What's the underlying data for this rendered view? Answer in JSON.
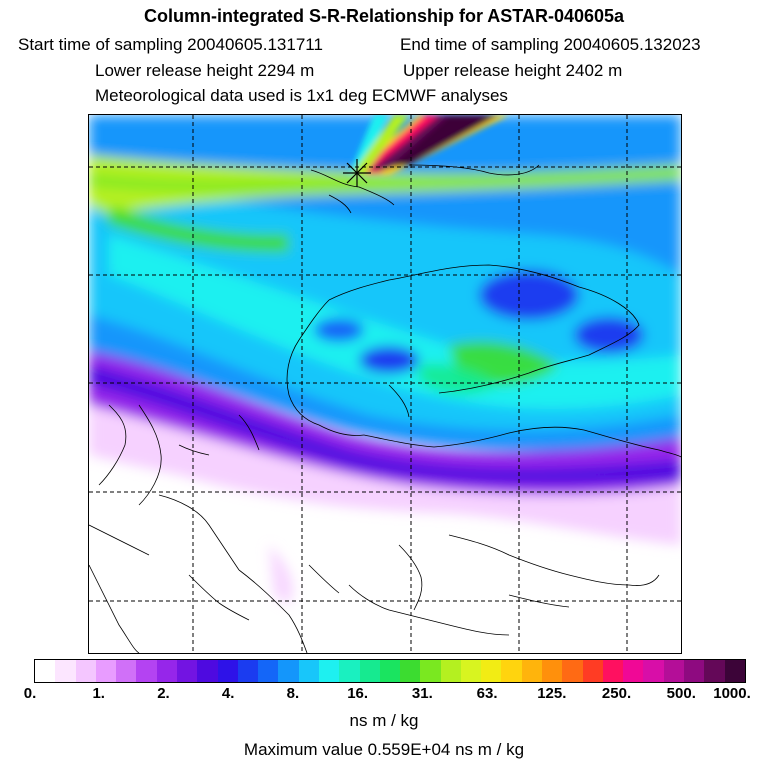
{
  "header": {
    "title": "Column-integrated S-R-Relationship for ASTAR-040605a",
    "start_time": "Start time of sampling 20040605.131711",
    "end_time": "End time of sampling 20040605.132023",
    "lower_height": "Lower release height 2294 m",
    "upper_height": "Upper release height 2402 m",
    "met_data": "Meteorological data used is 1x1 deg ECMWF analyses"
  },
  "colorbar": {
    "tick_labels": [
      "0.",
      "1.",
      "2.",
      "4.",
      "8.",
      "16.",
      "31.",
      "63.",
      "125.",
      "250.",
      "500.",
      "1000."
    ],
    "colors": [
      "#ffffff",
      "#fce6ff",
      "#f4c6ff",
      "#e89cff",
      "#d070f8",
      "#b443f2",
      "#9626ea",
      "#7314e2",
      "#4e0ae0",
      "#2e12e8",
      "#1b3cf0",
      "#1466f8",
      "#1496fb",
      "#18c6fa",
      "#1ef0f0",
      "#1af0c0",
      "#16ea90",
      "#1ae460",
      "#3cdc30",
      "#7ae820",
      "#b4f020",
      "#d8f420",
      "#f2ec14",
      "#ffd40e",
      "#ffb40c",
      "#ff900c",
      "#ff6a14",
      "#ff3c24",
      "#ff1060",
      "#f00896",
      "#d80ea8",
      "#b40e98",
      "#8e0a80",
      "#640858",
      "#3c0438"
    ],
    "units": "ns m / kg",
    "max_value": "Maximum value  0.559E+04 ns m / kg"
  },
  "map": {
    "release_marker": "star-marker",
    "grid_color": "#000000",
    "land_outline_color": "#000000"
  }
}
